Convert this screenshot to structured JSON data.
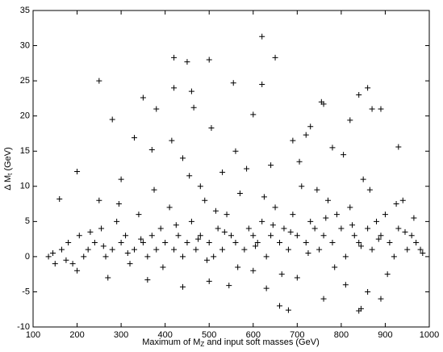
{
  "chart_data": {
    "type": "scatter",
    "xlabel": {
      "before": "Maximum of M",
      "sub": "Z",
      "after": " and input soft masses (GeV)"
    },
    "ylabel": {
      "before": "Δ M",
      "sub": "t",
      "after": " (GeV)"
    },
    "xlim": [
      100,
      1000
    ],
    "ylim": [
      -10,
      35
    ],
    "xticks": [
      100,
      200,
      300,
      400,
      500,
      600,
      700,
      800,
      900,
      1000
    ],
    "yticks": [
      -10,
      -5,
      0,
      5,
      10,
      15,
      20,
      25,
      30,
      35
    ],
    "color": "#000000",
    "points": [
      [
        250,
        25
      ],
      [
        420,
        28.3
      ],
      [
        450,
        27.7
      ],
      [
        500,
        28
      ],
      [
        620,
        31.3
      ],
      [
        650,
        28.3
      ],
      [
        460,
        23.5
      ],
      [
        420,
        24
      ],
      [
        350,
        22.6
      ],
      [
        380,
        21
      ],
      [
        465,
        21.2
      ],
      [
        620,
        24.5
      ],
      [
        555,
        24.7
      ],
      [
        280,
        19.5
      ],
      [
        600,
        20.2
      ],
      [
        755,
        22
      ],
      [
        760,
        21.7
      ],
      [
        840,
        23
      ],
      [
        860,
        24
      ],
      [
        870,
        21
      ],
      [
        890,
        21
      ],
      [
        820,
        19.4
      ],
      [
        505,
        18.3
      ],
      [
        330,
        16.9
      ],
      [
        370,
        15.2
      ],
      [
        415,
        16.5
      ],
      [
        200,
        12.1
      ],
      [
        160,
        8.2
      ],
      [
        930,
        15.6
      ],
      [
        730,
        18.5
      ],
      [
        690,
        16.5
      ],
      [
        720,
        17.3
      ],
      [
        680,
        -7.6
      ],
      [
        660,
        -7
      ],
      [
        840,
        -7.7
      ],
      [
        845,
        -7.4
      ],
      [
        760,
        -6
      ],
      [
        440,
        -4.3
      ],
      [
        545,
        -4.1
      ],
      [
        630,
        -4.5
      ],
      [
        890,
        -6
      ],
      [
        860,
        -5
      ],
      [
        500,
        -3.5
      ],
      [
        360,
        -3.3
      ],
      [
        270,
        -3
      ],
      [
        200,
        -2
      ],
      [
        135,
        0
      ],
      [
        150,
        -1
      ],
      [
        165,
        1
      ],
      [
        180,
        2
      ],
      [
        190,
        -1
      ],
      [
        205,
        3
      ],
      [
        215,
        0
      ],
      [
        225,
        1
      ],
      [
        240,
        2
      ],
      [
        255,
        4
      ],
      [
        265,
        0
      ],
      [
        280,
        1
      ],
      [
        290,
        5
      ],
      [
        300,
        2
      ],
      [
        310,
        3
      ],
      [
        320,
        -1
      ],
      [
        330,
        1
      ],
      [
        340,
        6
      ],
      [
        350,
        2
      ],
      [
        360,
        0
      ],
      [
        370,
        3
      ],
      [
        380,
        1
      ],
      [
        390,
        4
      ],
      [
        400,
        2
      ],
      [
        410,
        7
      ],
      [
        420,
        1
      ],
      [
        430,
        3
      ],
      [
        440,
        0
      ],
      [
        450,
        2
      ],
      [
        460,
        5
      ],
      [
        470,
        1
      ],
      [
        480,
        3
      ],
      [
        490,
        8
      ],
      [
        500,
        2
      ],
      [
        510,
        0
      ],
      [
        520,
        4
      ],
      [
        530,
        1
      ],
      [
        540,
        6
      ],
      [
        550,
        3
      ],
      [
        560,
        2
      ],
      [
        570,
        9
      ],
      [
        580,
        1
      ],
      [
        590,
        4
      ],
      [
        600,
        3
      ],
      [
        610,
        2
      ],
      [
        620,
        5
      ],
      [
        630,
        0
      ],
      [
        640,
        3
      ],
      [
        650,
        7
      ],
      [
        660,
        2
      ],
      [
        670,
        4
      ],
      [
        680,
        1
      ],
      [
        690,
        6
      ],
      [
        700,
        3
      ],
      [
        710,
        10
      ],
      [
        720,
        2
      ],
      [
        730,
        5
      ],
      [
        740,
        4
      ],
      [
        750,
        1
      ],
      [
        760,
        3
      ],
      [
        770,
        8
      ],
      [
        780,
        2
      ],
      [
        790,
        6
      ],
      [
        800,
        4
      ],
      [
        810,
        0
      ],
      [
        820,
        7
      ],
      [
        830,
        3
      ],
      [
        840,
        2
      ],
      [
        850,
        11
      ],
      [
        860,
        4
      ],
      [
        870,
        1
      ],
      [
        880,
        5
      ],
      [
        890,
        3
      ],
      [
        900,
        6
      ],
      [
        910,
        2
      ],
      [
        920,
        0
      ],
      [
        930,
        4
      ],
      [
        940,
        8
      ],
      [
        950,
        1
      ],
      [
        960,
        3
      ],
      [
        970,
        2
      ],
      [
        980,
        1
      ],
      [
        145,
        0.5
      ],
      [
        175,
        -0.5
      ],
      [
        230,
        3.5
      ],
      [
        260,
        1.5
      ],
      [
        295,
        7.5
      ],
      [
        315,
        0.5
      ],
      [
        345,
        2.5
      ],
      [
        375,
        9.5
      ],
      [
        395,
        -1.5
      ],
      [
        425,
        4.5
      ],
      [
        455,
        11.5
      ],
      [
        475,
        2.5
      ],
      [
        495,
        -0.5
      ],
      [
        515,
        6.5
      ],
      [
        535,
        3.5
      ],
      [
        565,
        -1.5
      ],
      [
        585,
        12.5
      ],
      [
        605,
        1.5
      ],
      [
        625,
        8.5
      ],
      [
        645,
        4.5
      ],
      [
        665,
        -2.5
      ],
      [
        685,
        3.5
      ],
      [
        705,
        13.5
      ],
      [
        725,
        0.5
      ],
      [
        745,
        9.5
      ],
      [
        765,
        5.5
      ],
      [
        785,
        -1.5
      ],
      [
        805,
        14.5
      ],
      [
        825,
        4.5
      ],
      [
        845,
        1.5
      ],
      [
        865,
        9.5
      ],
      [
        885,
        2.5
      ],
      [
        905,
        -2.5
      ],
      [
        925,
        7.5
      ],
      [
        945,
        3.5
      ],
      [
        965,
        5.5
      ],
      [
        985,
        0.5
      ],
      [
        440,
        14
      ],
      [
        560,
        15
      ],
      [
        640,
        13
      ],
      [
        780,
        15.5
      ],
      [
        600,
        -2
      ],
      [
        700,
        -3
      ],
      [
        810,
        -4
      ],
      [
        480,
        10
      ],
      [
        530,
        12
      ],
      [
        300,
        11
      ],
      [
        250,
        8
      ]
    ]
  }
}
